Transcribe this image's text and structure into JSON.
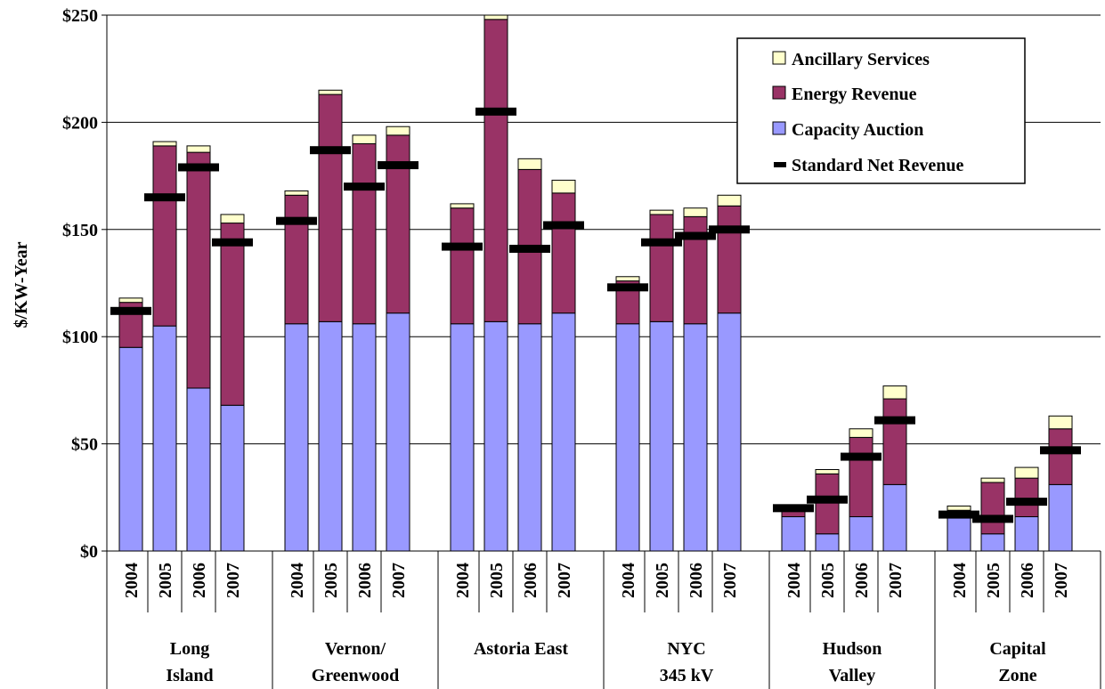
{
  "chart_data": {
    "type": "bar",
    "stacked": true,
    "title": "",
    "xlabel": "",
    "ylabel": "$/KW-Year",
    "ylim": [
      0,
      250
    ],
    "yticks": [
      "$0",
      "$50",
      "$100",
      "$150",
      "$200",
      "$250"
    ],
    "ytick_values": [
      0,
      50,
      100,
      150,
      200,
      250
    ],
    "grid": true,
    "legend_position": "top-right",
    "colors": {
      "Ancillary Services": "#ffffcc",
      "Energy Revenue": "#993366",
      "Capacity Auction": "#9999ff",
      "Standard Net Revenue": "#000000"
    },
    "groups": [
      {
        "label": [
          "Long",
          "Island"
        ],
        "years": [
          "2004",
          "2005",
          "2006",
          "2007"
        ]
      },
      {
        "label": [
          "Vernon/",
          "Greenwood"
        ],
        "years": [
          "2004",
          "2005",
          "2006",
          "2007"
        ]
      },
      {
        "label": [
          "Astoria East"
        ],
        "years": [
          "2004",
          "2005",
          "2006",
          "2007"
        ]
      },
      {
        "label": [
          "NYC",
          "345 kV"
        ],
        "years": [
          "2004",
          "2005",
          "2006",
          "2007"
        ]
      },
      {
        "label": [
          "Hudson",
          "Valley"
        ],
        "years": [
          "2004",
          "2005",
          "2006",
          "2007"
        ]
      },
      {
        "label": [
          "Capital",
          "Zone"
        ],
        "years": [
          "2004",
          "2005",
          "2006",
          "2007"
        ]
      }
    ],
    "series": [
      {
        "name": "Capacity Auction",
        "values": [
          95,
          105,
          76,
          68,
          106,
          107,
          106,
          111,
          106,
          107,
          106,
          111,
          106,
          107,
          106,
          111,
          16,
          8,
          16,
          31,
          16,
          8,
          16,
          31
        ]
      },
      {
        "name": "Energy Revenue",
        "values": [
          21,
          84,
          110,
          85,
          60,
          106,
          84,
          83,
          54,
          141,
          72,
          56,
          20,
          50,
          50,
          50,
          4,
          28,
          37,
          40,
          3,
          24,
          18,
          26
        ]
      },
      {
        "name": "Ancillary Services",
        "values": [
          2,
          2,
          3,
          4,
          2,
          2,
          4,
          4,
          2,
          2,
          5,
          6,
          2,
          2,
          4,
          5,
          1,
          2,
          4,
          6,
          2,
          2,
          5,
          6
        ]
      }
    ],
    "marker_series": {
      "name": "Standard Net Revenue",
      "values": [
        112,
        165,
        179,
        144,
        154,
        187,
        170,
        180,
        142,
        205,
        141,
        152,
        123,
        144,
        147,
        150,
        20,
        24,
        44,
        61,
        17,
        15,
        23,
        47
      ]
    },
    "legend": [
      "Ancillary Services",
      "Energy Revenue",
      "Capacity Auction",
      "Standard Net Revenue"
    ]
  }
}
